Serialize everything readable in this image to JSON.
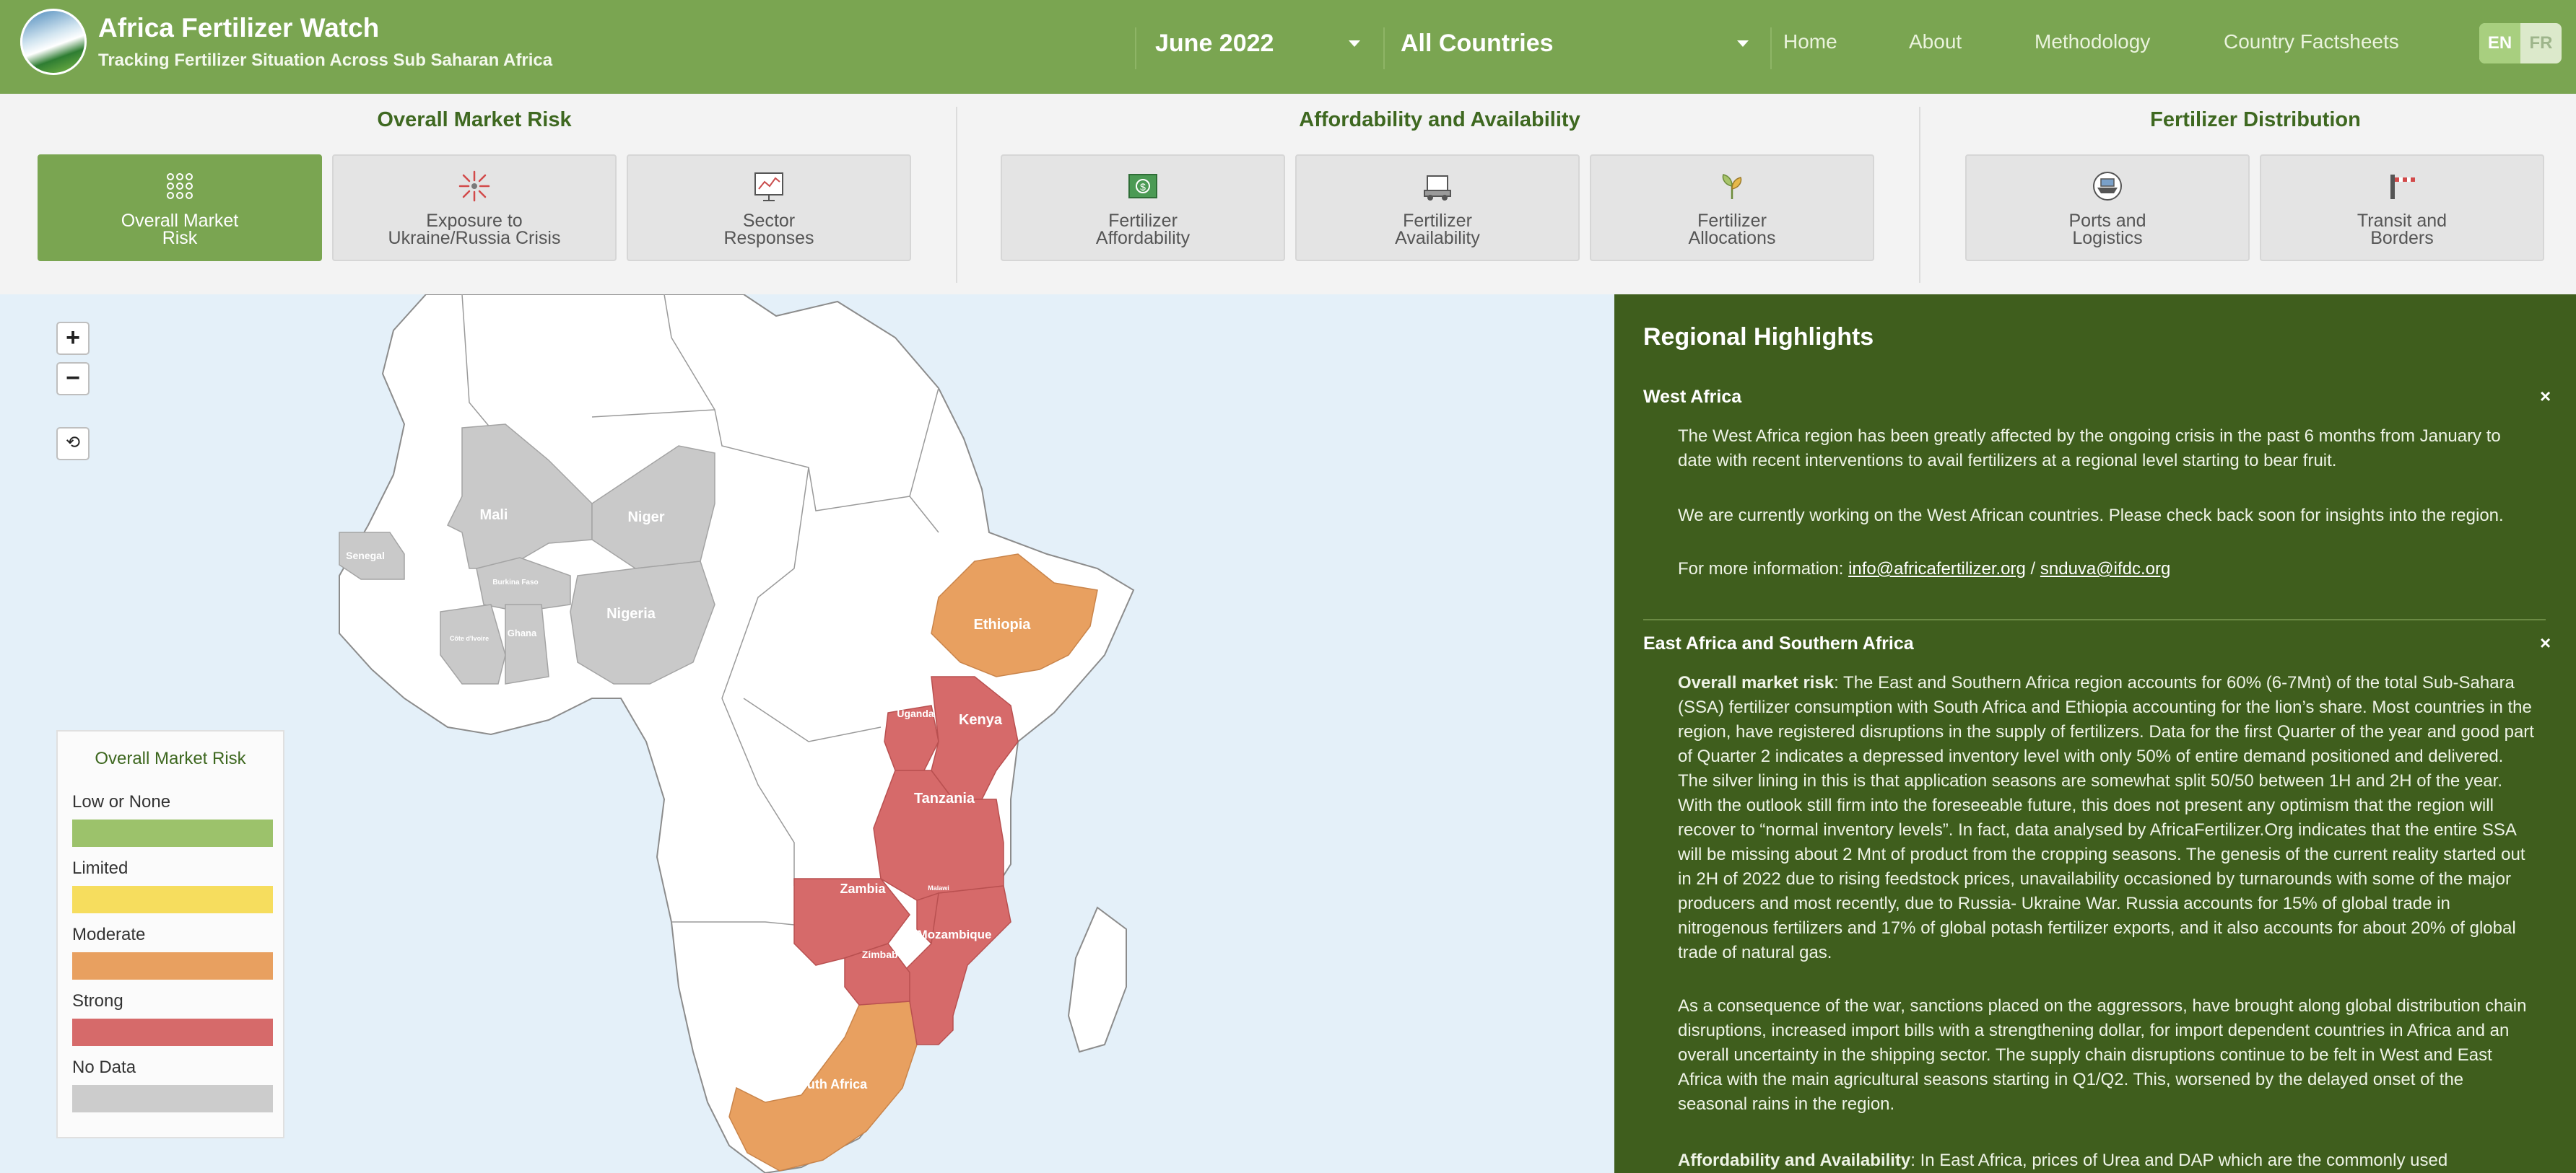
{
  "header": {
    "title": "Africa Fertilizer Watch",
    "subtitle": "Tracking Fertilizer Situation Across Sub Saharan Africa",
    "date_selected": "June 2022",
    "country_selected": "All Countries",
    "nav": [
      "Home",
      "About",
      "Methodology",
      "Country Factsheets"
    ],
    "lang": {
      "en": "EN",
      "fr": "FR"
    }
  },
  "categories": [
    {
      "heading": "Overall Market Risk",
      "tiles": [
        {
          "line1": "Overall Market",
          "line2": "Risk",
          "icon": "grid-dots-icon"
        },
        {
          "line1": "Exposure to",
          "line2": "Ukraine/Russia Crisis",
          "icon": "burst-icon"
        },
        {
          "line1": "Sector",
          "line2": "Responses",
          "icon": "chart-board-icon"
        }
      ]
    },
    {
      "heading": "Affordability and Availability",
      "tiles": [
        {
          "line1": "Fertilizer",
          "line2": "Affordability",
          "icon": "money-icon"
        },
        {
          "line1": "Fertilizer",
          "line2": "Availability",
          "icon": "truck-icon"
        },
        {
          "line1": "Fertilizer",
          "line2": "Allocations",
          "icon": "plant-icon"
        }
      ]
    },
    {
      "heading": "Fertilizer Distribution",
      "tiles": [
        {
          "line1": "Ports and",
          "line2": "Logistics",
          "icon": "ship-icon"
        },
        {
          "line1": "Transit and",
          "line2": "Borders",
          "icon": "border-gate-icon"
        }
      ]
    }
  ],
  "map": {
    "zoom_in": "+",
    "zoom_out": "−",
    "reset": "⟲",
    "labels": {
      "mali": "Mali",
      "niger": "Niger",
      "senegal": "Senegal",
      "burkina": "Burkina Faso",
      "ghana": "Ghana",
      "cotedivoire": "Côte d'Ivoire",
      "nigeria": "Nigeria",
      "ethiopia": "Ethiopia",
      "uganda": "Uganda",
      "kenya": "Kenya",
      "tanzania": "Tanzania",
      "zambia": "Zambia",
      "malawi": "Malawi",
      "mozambique": "Mozambique",
      "zimbabwe": "Zimbabwe",
      "southafrica": "South Africa"
    },
    "colors": {
      "none": "#c9c9c9",
      "moderate": "#e8a060",
      "strong": "#d66a6a",
      "land": "#ffffff",
      "sea": "#e4f0f9"
    },
    "legend": {
      "title": "Overall Market Risk",
      "items": [
        {
          "label": "Low or None",
          "color": "#9cc26b"
        },
        {
          "label": "Limited",
          "color": "#f6dd5e"
        },
        {
          "label": "Moderate",
          "color": "#e8a060"
        },
        {
          "label": "Strong",
          "color": "#d66a6a"
        },
        {
          "label": "No Data",
          "color": "#cccccc"
        }
      ]
    }
  },
  "panel": {
    "title": "Regional Highlights",
    "west": {
      "heading": "West Africa",
      "close": "×",
      "p1": "The West Africa region has been greatly affected by the ongoing crisis in the past 6 months from January to date with recent interventions to avail fertilizers at a regional level starting to bear fruit.",
      "p2": "We are currently working on the West African countries. Please check back soon for insights into the region.",
      "contact_prefix": "For more information: ",
      "email1": "info@africafertilizer.org",
      "sep": " / ",
      "email2": "snduva@ifdc.org"
    },
    "east": {
      "heading": "East Africa and Southern Africa",
      "close": "×",
      "p1_label": "Overall market risk",
      "p1": ": The East and Southern Africa region accounts for 60% (6-7Mnt) of the total Sub-Sahara (SSA) fertilizer consumption with South Africa and Ethiopia accounting for the lion’s share. Most countries in the region, have registered disruptions in the supply of fertilizers. Data for the first Quarter of the year and good part of Quarter 2 indicates a depressed inventory level with only 50% of entire demand positioned and delivered. The silver lining in this is that application seasons are somewhat split 50/50 between 1H and 2H of the year. With the outlook still firm into the foreseeable future, this does not present any optimism that the region will recover to “normal inventory levels”. In fact, data analysed by AfricaFertilizer.Org indicates that the entire SSA will be missing about 2 Mnt of product from the cropping seasons. The genesis of the current reality started out in 2H of 2022 due to rising feedstock prices, unavailability occasioned by turnarounds with some of the major producers and most recently, due to Russia- Ukraine War. Russia accounts for 15% of global trade in nitrogenous fertilizers and 17% of global potash fertilizer exports, and it also accounts for about 20% of global trade of natural gas.",
      "p2": "As a consequence of the war, sanctions placed on the aggressors, have brought along global distribution chain disruptions, increased import bills with a strengthening dollar, for import dependent countries in Africa and an overall uncertainty in the shipping sector. The supply chain disruptions continue to be felt in West and East Africa with the main agricultural seasons starting in Q1/Q2. This, worsened by the delayed onset of the seasonal rains in the region.",
      "p3_label": "Affordability and Availability",
      "p3": ": In East Africa, prices of Urea and DAP which are the commonly used"
    }
  }
}
